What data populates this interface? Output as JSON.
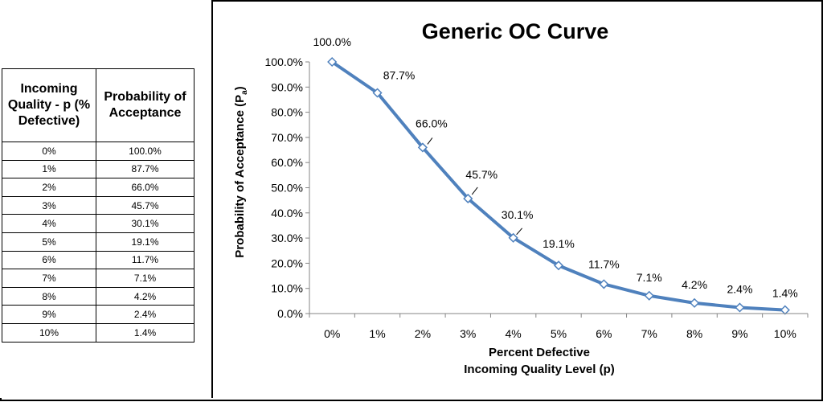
{
  "table": {
    "header_col1": "Incoming Quality - p (% Defective)",
    "header_col2": "Probability of Acceptance",
    "rows": [
      {
        "p": "0%",
        "pa": "100.0%"
      },
      {
        "p": "1%",
        "pa": "87.7%"
      },
      {
        "p": "2%",
        "pa": "66.0%"
      },
      {
        "p": "3%",
        "pa": "45.7%"
      },
      {
        "p": "4%",
        "pa": "30.1%"
      },
      {
        "p": "5%",
        "pa": "19.1%"
      },
      {
        "p": "6%",
        "pa": "11.7%"
      },
      {
        "p": "7%",
        "pa": "7.1%"
      },
      {
        "p": "8%",
        "pa": "4.2%"
      },
      {
        "p": "9%",
        "pa": "2.4%"
      },
      {
        "p": "10%",
        "pa": "1.4%"
      }
    ]
  },
  "chart_data": {
    "type": "line",
    "title": "Generic OC Curve",
    "xlabel_line1": "Percent Defective",
    "xlabel_line2": "Incoming Quality Level (p)",
    "ylabel_main": "Probability of Acceptance (P",
    "ylabel_sub": "a",
    "ylabel_end": ")",
    "categories": [
      "0%",
      "1%",
      "2%",
      "3%",
      "4%",
      "5%",
      "6%",
      "7%",
      "8%",
      "9%",
      "10%"
    ],
    "values": [
      100.0,
      87.7,
      66.0,
      45.7,
      30.1,
      19.1,
      11.7,
      7.1,
      4.2,
      2.4,
      1.4
    ],
    "data_labels": [
      "100.0%",
      "87.7%",
      "66.0%",
      "45.7%",
      "30.1%",
      "19.1%",
      "11.7%",
      "7.1%",
      "4.2%",
      "2.4%",
      "1.4%"
    ],
    "yticks": [
      "0.0%",
      "10.0%",
      "20.0%",
      "30.0%",
      "40.0%",
      "50.0%",
      "60.0%",
      "70.0%",
      "80.0%",
      "90.0%",
      "100.0%"
    ],
    "ylim": [
      0,
      100
    ],
    "line_color": "#4f81bd",
    "marker": "diamond"
  }
}
